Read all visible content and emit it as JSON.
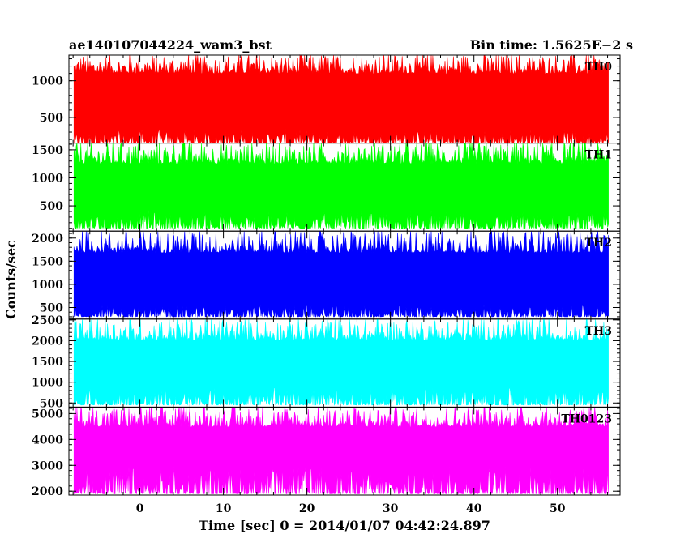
{
  "header": {
    "title": "ae140107044224_wam3_bst",
    "bin_time": "Bin time: 1.5625E−2 s"
  },
  "chart_data": {
    "type": "line",
    "xlabel": "Time [sec] 0 = 2014/01/07 04:42:24.897",
    "ylabel": "Counts/sec",
    "xlim": [
      -8.5,
      57.5
    ],
    "data_xlim": [
      -7.9,
      56.1
    ],
    "x_ticks": [
      0,
      10,
      20,
      30,
      40,
      50
    ],
    "grid": false,
    "panels": [
      {
        "name": "TH0",
        "color": "#ff0000",
        "ylim": [
          150,
          1350
        ],
        "y_ticks": [
          500,
          1000
        ],
        "baseline": 150,
        "low": 240,
        "high": 1120,
        "mean": 700
      },
      {
        "name": "TH1",
        "color": "#00ff00",
        "ylim": [
          50,
          1620
        ],
        "y_ticks": [
          500,
          1000,
          1500
        ],
        "baseline": 100,
        "low": 250,
        "high": 1280,
        "mean": 760
      },
      {
        "name": "TH2",
        "color": "#0000ff",
        "ylim": [
          250,
          2150
        ],
        "y_ticks": [
          500,
          1000,
          1500,
          2000
        ],
        "baseline": 300,
        "low": 420,
        "high": 1720,
        "mean": 1000
      },
      {
        "name": "TH3",
        "color": "#00ffff",
        "ylim": [
          400,
          2520
        ],
        "y_ticks": [
          500,
          1000,
          1500,
          2000,
          2500
        ],
        "baseline": 450,
        "low": 640,
        "high": 2050,
        "mean": 1350
      },
      {
        "name": "TH0123",
        "color": "#ff00ff",
        "ylim": [
          1850,
          5250
        ],
        "y_ticks": [
          2000,
          3000,
          4000,
          5000
        ],
        "baseline": 1900,
        "low": 2400,
        "high": 4550,
        "mean": 3400
      }
    ]
  }
}
